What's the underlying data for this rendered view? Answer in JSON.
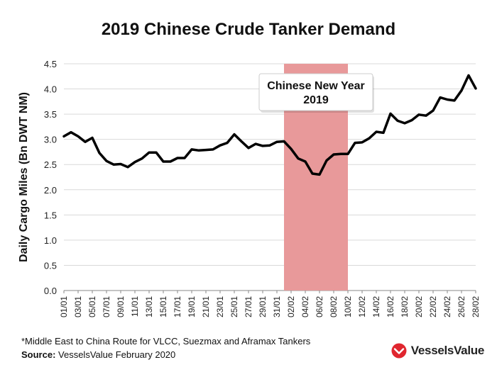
{
  "chart_data": {
    "type": "line",
    "title": "2019 Chinese Crude Tanker Demand",
    "ylabel": "Daily Cargo Miles (Bn DWT NM)",
    "xlabel": "",
    "ylim": [
      0,
      4.5
    ],
    "yticks": [
      "0.0",
      "0.5",
      "1.0",
      "1.5",
      "2.0",
      "2.5",
      "3.0",
      "3.5",
      "4.0",
      "4.5"
    ],
    "xticks": [
      "01/01",
      "03/01",
      "05/01",
      "07/01",
      "09/01",
      "11/01",
      "13/01",
      "15/01",
      "17/01",
      "19/01",
      "21/01",
      "23/01",
      "25/01",
      "27/01",
      "29/01",
      "31/01",
      "02/02",
      "04/02",
      "06/02",
      "08/02",
      "10/02",
      "12/02",
      "14/02",
      "16/02",
      "18/02",
      "20/02",
      "22/02",
      "24/02",
      "26/02",
      "28/02"
    ],
    "grid": true,
    "line_color": "#000000",
    "series": [
      {
        "values": [
          3.06,
          3.14,
          3.06,
          2.95,
          3.03,
          2.73,
          2.57,
          2.5,
          2.51,
          2.45,
          2.55,
          2.62,
          2.74,
          2.74,
          2.56,
          2.56,
          2.63,
          2.63,
          2.8,
          2.78,
          2.79,
          2.8,
          2.88,
          2.93,
          3.1,
          2.96,
          2.83,
          2.91,
          2.87,
          2.88,
          2.95,
          2.96,
          2.81,
          2.62,
          2.56,
          2.32,
          2.3,
          2.58,
          2.7,
          2.71,
          2.71,
          2.93,
          2.94,
          3.02,
          3.15,
          3.13,
          3.51,
          3.37,
          3.32,
          3.38,
          3.49,
          3.47,
          3.57,
          3.83,
          3.79,
          3.77,
          3.97,
          4.27,
          4.01
        ]
      }
    ],
    "annotation": {
      "lines": [
        "Chinese New Year",
        "2019"
      ],
      "span_start_index": 31,
      "span_end_index": 40,
      "color": "#e8999a"
    }
  },
  "footnote": "*Middle East to China Route for VLCC, Suezmax and Aframax Tankers",
  "source_label": "Source:",
  "source_text": " VesselsValue February 2020",
  "logo_text": "VesselsValue",
  "logo_color": "#e0262f"
}
